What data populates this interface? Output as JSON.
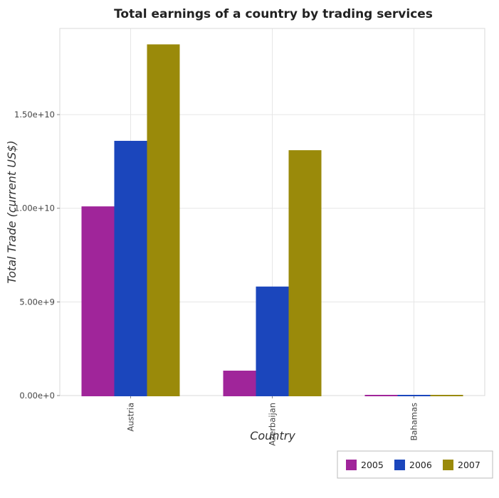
{
  "chart_data": {
    "type": "bar",
    "title": "Total earnings of a country by trading services",
    "xlabel": "Country",
    "ylabel": "Total Trade (current US$)",
    "categories": [
      "Austria",
      "Azerbaijan",
      "Bahamas"
    ],
    "series": [
      {
        "name": "2005",
        "color": "#a0259a",
        "values": [
          10100000000,
          1330000000,
          0
        ]
      },
      {
        "name": "2006",
        "color": "#1b46bc",
        "values": [
          13600000000,
          5820000000,
          0
        ]
      },
      {
        "name": "2007",
        "color": "#9a8a0a",
        "values": [
          18750000000,
          13100000000,
          0
        ]
      }
    ],
    "yticks": [
      "0.00e+0",
      "5.00e+9",
      "1.00e+10",
      "1.50e+10"
    ],
    "ytick_values": [
      0,
      5000000000,
      10000000000,
      15000000000
    ],
    "ylim": [
      0,
      19600000000
    ],
    "grid": true,
    "legend_position": "bottom-right"
  }
}
